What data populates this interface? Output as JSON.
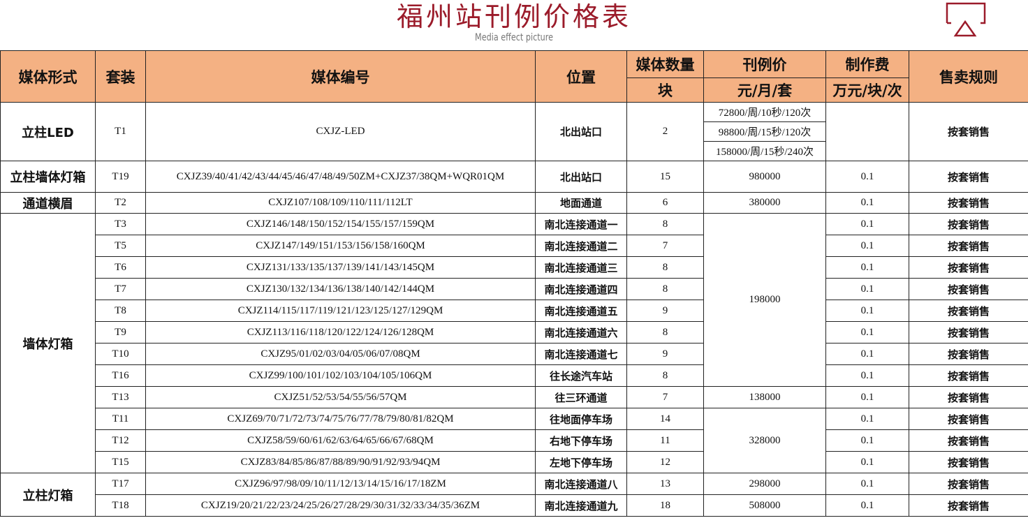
{
  "title": "福州站刊例价格表",
  "subtitle": "Media effect picture",
  "logo_color": "#9b1b2a",
  "header_color": "#f4b183",
  "headers": {
    "form": "媒体形式",
    "package": "套装",
    "code": "媒体编号",
    "location": "位置",
    "qty": "媒体数量",
    "qty_unit": "块",
    "price": "刊例价",
    "price_unit": "元/月/套",
    "fee": "制作费",
    "fee_unit": "万元/块/次",
    "rule": "售卖规则"
  },
  "led": {
    "form": "立柱LED",
    "package": "T1",
    "code": "CXJZ-LED",
    "location": "北出站口",
    "qty": "2",
    "prices": [
      "72800/周/10秒/120次",
      "98800/周/15秒/120次",
      "158000/周/15秒/240次"
    ],
    "fee": "",
    "rule": "按套销售"
  },
  "groups": {
    "wall_box": "墙体灯箱",
    "pillar_box": "立柱灯箱"
  },
  "rows": [
    {
      "form": "立柱墙体灯箱",
      "package": "T19",
      "code": "CXJZ39/40/41/42/43/44/45/46/47/48/49/50ZM+CXJZ37/38QM+WQR01QM",
      "location": "北出站口",
      "qty": "15",
      "price": "980000",
      "fee": "0.1",
      "rule": "按套销售"
    },
    {
      "form": "通道横眉",
      "package": "T2",
      "code": "CXJZ107/108/109/110/111/112LT",
      "location": "地面通道",
      "qty": "6",
      "price": "380000",
      "fee": "0.1",
      "rule": "按套销售"
    },
    {
      "package": "T3",
      "code": "CXJZ146/148/150/152/154/155/157/159QM",
      "location": "南北连接通道一",
      "qty": "8",
      "price": "198000",
      "fee": "0.1",
      "rule": "按套销售"
    },
    {
      "package": "T5",
      "code": "CXJZ147/149/151/153/156/158/160QM",
      "location": "南北连接通道二",
      "qty": "7",
      "fee": "0.1",
      "rule": "按套销售"
    },
    {
      "package": "T6",
      "code": "CXJZ131/133/135/137/139/141/143/145QM",
      "location": "南北连接通道三",
      "qty": "8",
      "fee": "0.1",
      "rule": "按套销售"
    },
    {
      "package": "T7",
      "code": "CXJZ130/132/134/136/138/140/142/144QM",
      "location": "南北连接通道四",
      "qty": "8",
      "fee": "0.1",
      "rule": "按套销售"
    },
    {
      "package": "T8",
      "code": "CXJZ114/115/117/119/121/123/125/127/129QM",
      "location": "南北连接通道五",
      "qty": "9",
      "fee": "0.1",
      "rule": "按套销售"
    },
    {
      "package": "T9",
      "code": "CXJZ113/116/118/120/122/124/126/128QM",
      "location": "南北连接通道六",
      "qty": "8",
      "fee": "0.1",
      "rule": "按套销售"
    },
    {
      "package": "T10",
      "code": "CXJZ95/01/02/03/04/05/06/07/08QM",
      "location": "南北连接通道七",
      "qty": "9",
      "fee": "0.1",
      "rule": "按套销售"
    },
    {
      "package": "T16",
      "code": "CXJZ99/100/101/102/103/104/105/106QM",
      "location": "往长途汽车站",
      "qty": "8",
      "fee": "0.1",
      "rule": "按套销售"
    },
    {
      "package": "T13",
      "code": "CXJZ51/52/53/54/55/56/57QM",
      "location": "往三环通道",
      "qty": "7",
      "price": "138000",
      "fee": "0.1",
      "rule": "按套销售"
    },
    {
      "package": "T11",
      "code": "CXJZ69/70/71/72/73/74/75/76/77/78/79/80/81/82QM",
      "location": "往地面停车场",
      "qty": "14",
      "price": "328000",
      "fee": "0.1",
      "rule": "按套销售"
    },
    {
      "package": "T12",
      "code": "CXJZ58/59/60/61/62/63/64/65/66/67/68QM",
      "location": "右地下停车场",
      "qty": "11",
      "fee": "0.1",
      "rule": "按套销售"
    },
    {
      "package": "T15",
      "code": "CXJZ83/84/85/86/87/88/89/90/91/92/93/94QM",
      "location": "左地下停车场",
      "qty": "12",
      "fee": "0.1",
      "rule": "按套销售"
    },
    {
      "package": "T17",
      "code": "CXJZ96/97/98/09/10/11/12/13/14/15/16/17/18ZM",
      "location": "南北连接通道八",
      "qty": "13",
      "price": "298000",
      "fee": "0.1",
      "rule": "按套销售"
    },
    {
      "package": "T18",
      "code": "CXJZ19/20/21/22/23/24/25/26/27/28/29/30/31/32/33/34/35/36ZM",
      "location": "南北连接通道九",
      "qty": "18",
      "price": "508000",
      "fee": "0.1",
      "rule": "按套销售"
    }
  ]
}
